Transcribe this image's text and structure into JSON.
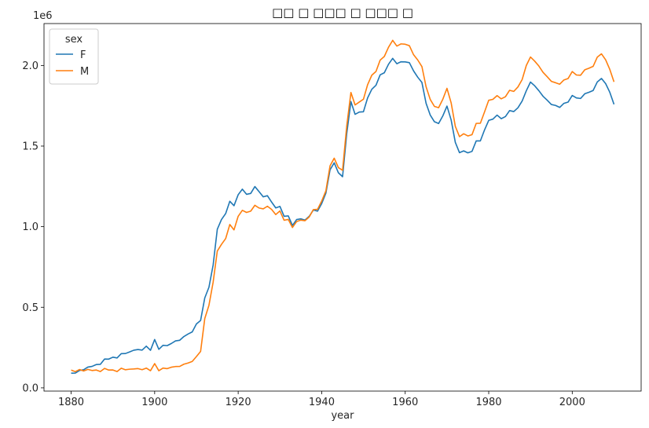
{
  "chart_data": {
    "type": "line",
    "title": "□□ □ □□□ □ □□□ □",
    "xlabel": "year",
    "ylabel": "",
    "y_offset_label": "1e6",
    "xlim": [
      1873.5,
      2016.5
    ],
    "ylim": [
      -20000,
      2260000
    ],
    "x_ticks": [
      1880,
      1900,
      1920,
      1940,
      1960,
      1980,
      2000
    ],
    "x_tick_labels": [
      "1880",
      "1900",
      "1920",
      "1940",
      "1960",
      "1980",
      "2000"
    ],
    "y_ticks": [
      0,
      500000,
      1000000,
      1500000,
      2000000
    ],
    "y_tick_labels": [
      "0.0",
      "0.5",
      "1.0",
      "1.5",
      "2.0"
    ],
    "grid": false,
    "legend": {
      "title": "sex",
      "position": "top-left"
    },
    "colors": {
      "F": "#1f77b4",
      "M": "#ff7f0e"
    },
    "x": [
      1880,
      1881,
      1882,
      1883,
      1884,
      1885,
      1886,
      1887,
      1888,
      1889,
      1890,
      1891,
      1892,
      1893,
      1894,
      1895,
      1896,
      1897,
      1898,
      1899,
      1900,
      1901,
      1902,
      1903,
      1904,
      1905,
      1906,
      1907,
      1908,
      1909,
      1910,
      1911,
      1912,
      1913,
      1914,
      1915,
      1916,
      1917,
      1918,
      1919,
      1920,
      1921,
      1922,
      1923,
      1924,
      1925,
      1926,
      1927,
      1928,
      1929,
      1930,
      1931,
      1932,
      1933,
      1934,
      1935,
      1936,
      1937,
      1938,
      1939,
      1940,
      1941,
      1942,
      1943,
      1944,
      1945,
      1946,
      1947,
      1948,
      1949,
      1950,
      1951,
      1952,
      1953,
      1954,
      1955,
      1956,
      1957,
      1958,
      1959,
      1960,
      1961,
      1962,
      1963,
      1964,
      1965,
      1966,
      1967,
      1968,
      1969,
      1970,
      1971,
      1972,
      1973,
      1974,
      1975,
      1976,
      1977,
      1978,
      1979,
      1980,
      1981,
      1982,
      1983,
      1984,
      1985,
      1986,
      1987,
      1988,
      1989,
      1990,
      1991,
      1992,
      1993,
      1994,
      1995,
      1996,
      1997,
      1998,
      1999,
      2000,
      2001,
      2002,
      2003,
      2004,
      2005,
      2006,
      2007,
      2008,
      2009,
      2010
    ],
    "series": [
      {
        "name": "F",
        "values": [
          90994,
          91953,
          107847,
          112319,
          129019,
          133055,
          144533,
          145983,
          178622,
          178366,
          190376,
          185480,
          212346,
          212906,
          222921,
          233630,
          237920,
          234202,
          258770,
          233022,
          299810,
          239349,
          264079,
          261976,
          275375,
          291641,
          295301,
          318558,
          334277,
          347191,
          396416,
          418180,
          557939,
          624317,
          761376,
          983824,
          1044249,
          1081194,
          1157585,
          1130149,
          1198214,
          1232845,
          1200796,
          1206239,
          1248821,
          1217217,
          1185078,
          1192207,
          1152836,
          1116284,
          1125521,
          1064233,
          1066930,
          1007523,
          1044359,
          1048395,
          1040892,
          1063859,
          1103403,
          1096338,
          1143386,
          1207696,
          1352926,
          1396287,
          1334311,
          1310085,
          1578061,
          1775986,
          1696988,
          1711262,
          1713064,
          1799113,
          1852297,
          1877096,
          1941656,
          1954960,
          2007520,
          2044039,
          2010884,
          2023044,
          2022093,
          2017316,
          1966476,
          1927184,
          1894356,
          1765166,
          1691905,
          1650764,
          1640043,
          1686947,
          1748175,
          1662250,
          1522800,
          1459017,
          1470287,
          1457964,
          1467262,
          1532115,
          1532141,
          1600407,
          1659484,
          1667101,
          1692084,
          1669980,
          1682941,
          1720153,
          1714083,
          1737679,
          1779104,
          1843025,
          1897158,
          1874109,
          1843864,
          1809165,
          1784689,
          1757919,
          1752000,
          1739806,
          1765039,
          1772675,
          1813960,
          1798519,
          1795263,
          1824420,
          1833610,
          1844700,
          1897890,
          1919408,
          1887234,
          1833304,
          1759010
        ]
      },
      {
        "name": "M",
        "values": [
          110491,
          100743,
          113686,
          104627,
          114442,
          107799,
          110784,
          101415,
          120851,
          110580,
          111025,
          101196,
          122037,
          112317,
          115772,
          117398,
          119570,
          112758,
          122693,
          106212,
          150540,
          106470,
          122660,
          119233,
          128129,
          132319,
          133159,
          146838,
          154339,
          163983,
          194198,
          225936,
          429952,
          512482,
          654746,
          848643,
          890142,
          925916,
          1013541,
          980168,
          1064484,
          1101397,
          1088258,
          1096302,
          1132671,
          1115751,
          1110454,
          1126722,
          1107221,
          1075185,
          1097297,
          1039893,
          1045058,
          994764,
          1031927,
          1040640,
          1036928,
          1059789,
          1105858,
          1107285,
          1158818,
          1221986,
          1377813,
          1424802,
          1366209,
          1349904,
          1625003,
          1832453,
          1755069,
          1772961,
          1790904,
          1881058,
          1939645,
          1962811,
          2033218,
          2056007,
          2113124,
          2155868,
          2120312,
          2133925,
          2131796,
          2122688,
          2066722,
          2034030,
          1993148,
          1867929,
          1788925,
          1746005,
          1737925,
          1790203,
          1858004,
          1768366,
          1622101,
          1558498,
          1576542,
          1562906,
          1570859,
          1640718,
          1641838,
          1711996,
          1784233,
          1789958,
          1812906,
          1793108,
          1805992,
          1846062,
          1839131,
          1867001,
          1912225,
          1999951,
          2052488,
          2027128,
          1996788,
          1957771,
          1930149,
          1901542,
          1893044,
          1883780,
          1910059,
          1918710,
          1962208,
          1940940,
          1939473,
          1973213,
          1982897,
          1994347,
          2051990,
          2072148,
          2035075,
          1975253,
          1898382
        ]
      }
    ]
  }
}
